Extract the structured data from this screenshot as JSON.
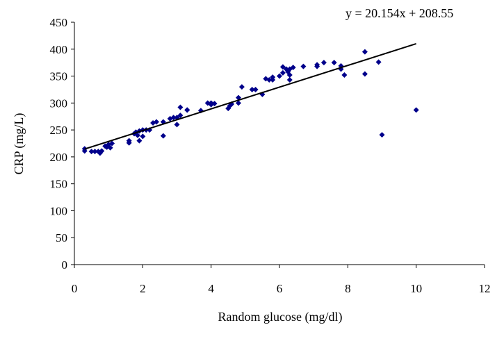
{
  "chart_data": {
    "type": "scatter",
    "xlabel": "Random glucose (mg/dl)",
    "ylabel": "CRP (mg/L)",
    "xlim": [
      0,
      12
    ],
    "ylim": [
      0,
      450
    ],
    "x_ticks": [
      0,
      2,
      4,
      6,
      8,
      10,
      12
    ],
    "y_ticks": [
      0,
      50,
      100,
      150,
      200,
      250,
      300,
      350,
      400,
      450
    ],
    "grid": false,
    "legend": "none",
    "marker": "diamond",
    "colors": {
      "points": "#00008B",
      "trendline": "#000000",
      "axes": "#000000"
    },
    "trendline": {
      "equation": "y = 20.154x + 208.55",
      "slope": 20.154,
      "intercept": 208.55,
      "x_range": [
        0.3,
        10
      ]
    },
    "series": [
      {
        "points": [
          [
            0.3,
            215
          ],
          [
            0.3,
            211
          ],
          [
            0.5,
            210
          ],
          [
            0.6,
            210
          ],
          [
            0.7,
            210
          ],
          [
            0.75,
            207
          ],
          [
            0.8,
            211
          ],
          [
            0.9,
            220
          ],
          [
            0.95,
            218
          ],
          [
            1.0,
            223
          ],
          [
            1.05,
            217
          ],
          [
            1.1,
            225
          ],
          [
            1.6,
            226
          ],
          [
            1.6,
            230
          ],
          [
            1.75,
            243
          ],
          [
            1.8,
            246
          ],
          [
            1.85,
            240
          ],
          [
            1.9,
            230
          ],
          [
            1.9,
            248
          ],
          [
            2.0,
            250
          ],
          [
            2.0,
            238
          ],
          [
            2.1,
            250
          ],
          [
            2.2,
            250
          ],
          [
            2.3,
            263
          ],
          [
            2.4,
            265
          ],
          [
            2.6,
            265
          ],
          [
            2.6,
            239
          ],
          [
            2.8,
            271
          ],
          [
            2.9,
            273
          ],
          [
            3.0,
            260
          ],
          [
            3.0,
            273
          ],
          [
            3.1,
            292
          ],
          [
            3.1,
            277
          ],
          [
            3.3,
            287
          ],
          [
            3.3,
            287
          ],
          [
            3.7,
            286
          ],
          [
            3.9,
            300
          ],
          [
            4.0,
            300
          ],
          [
            4.0,
            297
          ],
          [
            4.1,
            299
          ],
          [
            4.5,
            290
          ],
          [
            4.55,
            295
          ],
          [
            4.6,
            298
          ],
          [
            4.8,
            300
          ],
          [
            4.8,
            310
          ],
          [
            4.9,
            330
          ],
          [
            5.2,
            325
          ],
          [
            5.3,
            325
          ],
          [
            5.5,
            316
          ],
          [
            5.6,
            345
          ],
          [
            5.7,
            343
          ],
          [
            5.8,
            348
          ],
          [
            5.8,
            343
          ],
          [
            6.0,
            350
          ],
          [
            6.1,
            367
          ],
          [
            6.1,
            356
          ],
          [
            6.2,
            363
          ],
          [
            6.25,
            358
          ],
          [
            6.3,
            343
          ],
          [
            6.3,
            363
          ],
          [
            6.3,
            352
          ],
          [
            6.4,
            366
          ],
          [
            6.7,
            368
          ],
          [
            7.1,
            368
          ],
          [
            7.1,
            371
          ],
          [
            7.3,
            375
          ],
          [
            7.6,
            375
          ],
          [
            7.8,
            369
          ],
          [
            7.8,
            363
          ],
          [
            7.9,
            352
          ],
          [
            8.5,
            395
          ],
          [
            8.5,
            354
          ],
          [
            8.9,
            376
          ],
          [
            9.0,
            241
          ],
          [
            10.0,
            287
          ]
        ]
      }
    ]
  }
}
